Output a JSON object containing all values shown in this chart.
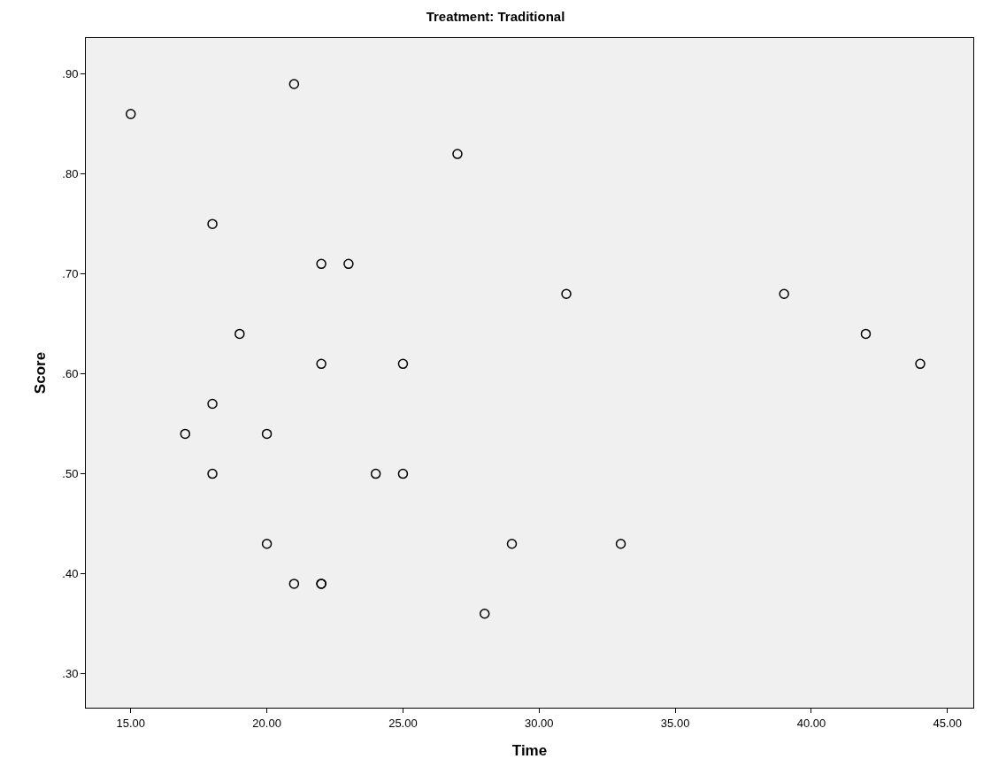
{
  "chart_data": {
    "type": "scatter",
    "title": "Treatment: Traditional",
    "xlabel": "Time",
    "ylabel": "Score",
    "x": [
      15,
      21,
      27,
      18,
      22,
      23,
      31,
      39,
      19,
      42,
      22,
      25,
      44,
      18,
      17,
      20,
      18,
      24,
      25,
      20,
      29,
      33,
      21,
      22,
      22,
      28
    ],
    "values": [
      0.86,
      0.89,
      0.82,
      0.75,
      0.71,
      0.71,
      0.68,
      0.68,
      0.64,
      0.64,
      0.61,
      0.61,
      0.61,
      0.57,
      0.54,
      0.54,
      0.5,
      0.5,
      0.5,
      0.43,
      0.43,
      0.43,
      0.39,
      0.39,
      0.39,
      0.36
    ],
    "color": "#000000",
    "marker": "circle",
    "grid": false,
    "xlim": [
      13.35,
      45.95
    ],
    "ylim": [
      0.266,
      0.936
    ],
    "xticks": [
      {
        "value": 15,
        "label": "15.00"
      },
      {
        "value": 20,
        "label": "20.00"
      },
      {
        "value": 25,
        "label": "25.00"
      },
      {
        "value": 30,
        "label": "30.00"
      },
      {
        "value": 35,
        "label": "35.00"
      },
      {
        "value": 40,
        "label": "40.00"
      },
      {
        "value": 45,
        "label": "45.00"
      }
    ],
    "yticks": [
      {
        "value": 0.3,
        "label": ".30"
      },
      {
        "value": 0.4,
        "label": ".40"
      },
      {
        "value": 0.5,
        "label": ".50"
      },
      {
        "value": 0.6,
        "label": ".60"
      },
      {
        "value": 0.7,
        "label": ".70"
      },
      {
        "value": 0.8,
        "label": ".80"
      },
      {
        "value": 0.9,
        "label": ".90"
      }
    ]
  }
}
